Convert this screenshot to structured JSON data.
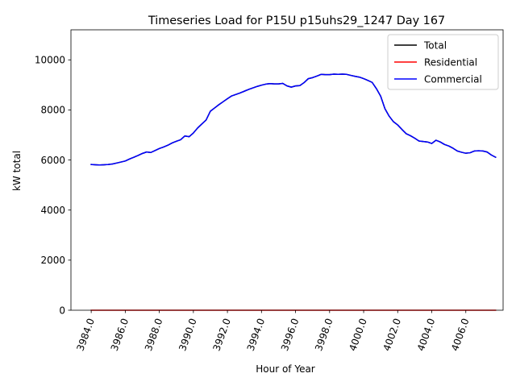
{
  "chart_data": {
    "type": "line",
    "title": "Timeseries Load for P15U p15uhs29_1247  Day 167",
    "xlabel": "Hour of Year",
    "ylabel": "kW total",
    "xlim": [
      3982.81,
      4008.19
    ],
    "ylim": [
      0,
      11200
    ],
    "xticks": [
      3984,
      3986,
      3988,
      3990,
      3992,
      3994,
      3996,
      3998,
      4000,
      4002,
      4004,
      4006
    ],
    "xtick_labels": [
      "3984.0",
      "3986.0",
      "3988.0",
      "3990.0",
      "3992.0",
      "3994.0",
      "3996.0",
      "3998.0",
      "4000.0",
      "4002.0",
      "4004.0",
      "4006.0"
    ],
    "yticks": [
      0,
      2000,
      4000,
      6000,
      8000,
      10000
    ],
    "ytick_labels": [
      "0",
      "2000",
      "4000",
      "6000",
      "8000",
      "10000"
    ],
    "legend_position": "top-right",
    "x": [
      3984.0,
      3984.25,
      3984.5,
      3984.75,
      3985.0,
      3985.25,
      3985.5,
      3985.75,
      3986.0,
      3986.25,
      3986.5,
      3986.75,
      3987.0,
      3987.25,
      3987.5,
      3987.75,
      3988.0,
      3988.25,
      3988.5,
      3988.75,
      3989.0,
      3989.25,
      3989.5,
      3989.75,
      3990.0,
      3990.25,
      3990.5,
      3990.75,
      3991.0,
      3991.25,
      3991.5,
      3991.75,
      3992.0,
      3992.25,
      3992.5,
      3992.75,
      3993.0,
      3993.25,
      3993.5,
      3993.75,
      3994.0,
      3994.25,
      3994.5,
      3994.75,
      3995.0,
      3995.25,
      3995.5,
      3995.75,
      3996.0,
      3996.25,
      3996.5,
      3996.75,
      3997.0,
      3997.25,
      3997.5,
      3997.75,
      3998.0,
      3998.25,
      3998.5,
      3998.75,
      3999.0,
      3999.25,
      3999.5,
      3999.75,
      4000.0,
      4000.25,
      4000.5,
      4000.75,
      4001.0,
      4001.25,
      4001.5,
      4001.75,
      4002.0,
      4002.25,
      4002.5,
      4002.75,
      4003.0,
      4003.25,
      4003.5,
      4003.75,
      4004.0,
      4004.25,
      4004.5,
      4004.75,
      4005.0,
      4005.25,
      4005.5,
      4005.75,
      4006.0,
      4006.25,
      4006.5,
      4006.75,
      4007.0,
      4007.25,
      4007.5,
      4007.75
    ],
    "series": [
      {
        "name": "Total",
        "color": "#000000",
        "values": [
          5820,
          5810,
          5800,
          5810,
          5820,
          5840,
          5880,
          5920,
          5960,
          6040,
          6110,
          6180,
          6260,
          6320,
          6300,
          6380,
          6460,
          6520,
          6590,
          6680,
          6750,
          6810,
          6960,
          6930,
          7080,
          7280,
          7440,
          7600,
          7950,
          8080,
          8210,
          8330,
          8450,
          8560,
          8620,
          8680,
          8750,
          8820,
          8880,
          8940,
          8990,
          9030,
          9050,
          9040,
          9040,
          9060,
          8960,
          8910,
          8960,
          8970,
          9090,
          9250,
          9290,
          9350,
          9420,
          9410,
          9410,
          9430,
          9420,
          9430,
          9420,
          9380,
          9340,
          9310,
          9250,
          9180,
          9100,
          8850,
          8550,
          8050,
          7750,
          7530,
          7400,
          7220,
          7050,
          6970,
          6870,
          6760,
          6740,
          6720,
          6660,
          6790,
          6720,
          6620,
          6560,
          6470,
          6360,
          6310,
          6270,
          6290,
          6360,
          6370,
          6360,
          6320,
          6200,
          6110
        ]
      },
      {
        "name": "Residential",
        "color": "#ff0000",
        "values": [
          0,
          0,
          0,
          0,
          0,
          0,
          0,
          0,
          0,
          0,
          0,
          0,
          0,
          0,
          0,
          0,
          0,
          0,
          0,
          0,
          0,
          0,
          0,
          0,
          0,
          0,
          0,
          0,
          0,
          0,
          0,
          0,
          0,
          0,
          0,
          0,
          0,
          0,
          0,
          0,
          0,
          0,
          0,
          0,
          0,
          0,
          0,
          0,
          0,
          0,
          0,
          0,
          0,
          0,
          0,
          0,
          0,
          0,
          0,
          0,
          0,
          0,
          0,
          0,
          0,
          0,
          0,
          0,
          0,
          0,
          0,
          0,
          0,
          0,
          0,
          0,
          0,
          0,
          0,
          0,
          0,
          0,
          0,
          0,
          0,
          0,
          0,
          0,
          0,
          0,
          0,
          0,
          0,
          0,
          0,
          0
        ]
      },
      {
        "name": "Commercial",
        "color": "#0000ff",
        "values": [
          5820,
          5810,
          5800,
          5810,
          5820,
          5840,
          5880,
          5920,
          5960,
          6040,
          6110,
          6180,
          6260,
          6320,
          6300,
          6380,
          6460,
          6520,
          6590,
          6680,
          6750,
          6810,
          6960,
          6930,
          7080,
          7280,
          7440,
          7600,
          7950,
          8080,
          8210,
          8330,
          8450,
          8560,
          8620,
          8680,
          8750,
          8820,
          8880,
          8940,
          8990,
          9030,
          9050,
          9040,
          9040,
          9060,
          8960,
          8910,
          8960,
          8970,
          9090,
          9250,
          9290,
          9350,
          9420,
          9410,
          9410,
          9430,
          9420,
          9430,
          9420,
          9380,
          9340,
          9310,
          9250,
          9180,
          9100,
          8850,
          8550,
          8050,
          7750,
          7530,
          7400,
          7220,
          7050,
          6970,
          6870,
          6760,
          6740,
          6720,
          6660,
          6790,
          6720,
          6620,
          6560,
          6470,
          6360,
          6310,
          6270,
          6290,
          6360,
          6370,
          6360,
          6320,
          6200,
          6110
        ]
      }
    ]
  }
}
